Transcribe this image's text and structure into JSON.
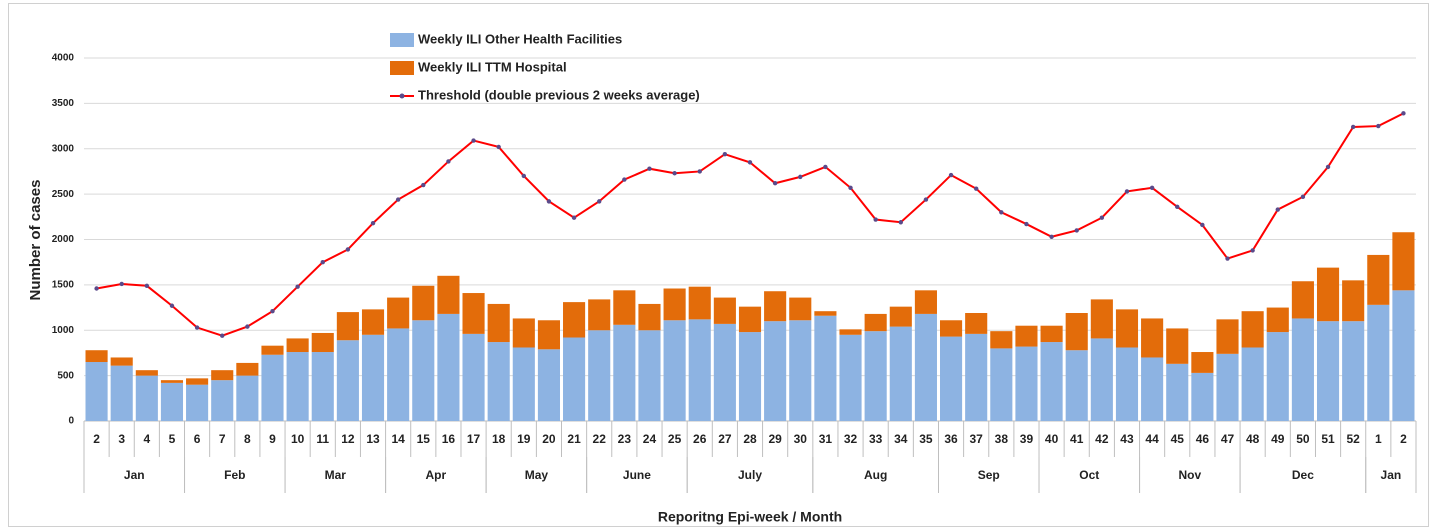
{
  "chart_data": {
    "type": "bar",
    "x_label": "Reporitng Epi-week / Month",
    "y_label": "Number of cases",
    "categories": [
      "2",
      "3",
      "4",
      "5",
      "6",
      "7",
      "8",
      "9",
      "10",
      "11",
      "12",
      "13",
      "14",
      "15",
      "16",
      "17",
      "18",
      "19",
      "20",
      "21",
      "22",
      "23",
      "24",
      "25",
      "26",
      "27",
      "28",
      "29",
      "30",
      "31",
      "32",
      "33",
      "34",
      "35",
      "36",
      "37",
      "38",
      "39",
      "40",
      "41",
      "42",
      "43",
      "44",
      "45",
      "46",
      "47",
      "48",
      "49",
      "50",
      "51",
      "52",
      "1",
      "2"
    ],
    "month_groups": [
      {
        "label": "Jan",
        "weeks": 4
      },
      {
        "label": "Feb",
        "weeks": 4
      },
      {
        "label": "Mar",
        "weeks": 4
      },
      {
        "label": "Apr",
        "weeks": 4
      },
      {
        "label": "May",
        "weeks": 4
      },
      {
        "label": "June",
        "weeks": 4
      },
      {
        "label": "July",
        "weeks": 5
      },
      {
        "label": "Aug",
        "weeks": 5
      },
      {
        "label": "Sep",
        "weeks": 4
      },
      {
        "label": "Oct",
        "weeks": 4
      },
      {
        "label": "Nov",
        "weeks": 4
      },
      {
        "label": "Dec",
        "weeks": 5
      },
      {
        "label": "Jan",
        "weeks": 2
      }
    ],
    "series": [
      {
        "name": "Weekly ILI Other Health Facilities",
        "kind": "bar",
        "color": "#8db3e2",
        "values": [
          650,
          610,
          500,
          420,
          400,
          450,
          500,
          730,
          760,
          760,
          890,
          950,
          1020,
          1110,
          1180,
          960,
          870,
          810,
          790,
          920,
          1000,
          1060,
          1000,
          1110,
          1120,
          1070,
          980,
          1100,
          1110,
          1160,
          950,
          990,
          1040,
          1180,
          930,
          960,
          800,
          820,
          870,
          780,
          910,
          810,
          700,
          630,
          530,
          740,
          810,
          980,
          1130,
          1100,
          1100,
          1280,
          1440
        ]
      },
      {
        "name": "Weekly ILI TTM Hospital",
        "kind": "bar",
        "color": "#e36c0a",
        "values": [
          130,
          90,
          60,
          30,
          70,
          110,
          140,
          100,
          150,
          210,
          310,
          280,
          340,
          380,
          420,
          450,
          420,
          320,
          320,
          390,
          340,
          380,
          290,
          350,
          360,
          290,
          280,
          330,
          250,
          50,
          60,
          190,
          220,
          260,
          180,
          230,
          190,
          230,
          180,
          410,
          430,
          420,
          430,
          390,
          230,
          380,
          400,
          270,
          410,
          590,
          450,
          550,
          640
        ]
      },
      {
        "name": "Threshold (double previous 2 weeks average)",
        "kind": "line",
        "color": "#ff0000",
        "marker_color": "#5b4a8a",
        "values": [
          1460,
          1510,
          1490,
          1270,
          1030,
          940,
          1040,
          1210,
          1480,
          1750,
          1890,
          2180,
          2440,
          2600,
          2860,
          3090,
          3020,
          2700,
          2420,
          2240,
          2420,
          2660,
          2780,
          2730,
          2750,
          2940,
          2850,
          2620,
          2690,
          2800,
          2570,
          2220,
          2190,
          2440,
          2710,
          2560,
          2300,
          2170,
          2030,
          2100,
          2240,
          2530,
          2570,
          2360,
          2160,
          1790,
          1880,
          2330,
          2470,
          2800,
          3240,
          3250,
          3390
        ]
      }
    ],
    "ylim": [
      0,
      4000
    ],
    "yticks": [
      0,
      500,
      1000,
      1500,
      2000,
      2500,
      3000,
      3500,
      4000
    ],
    "grid": true
  }
}
